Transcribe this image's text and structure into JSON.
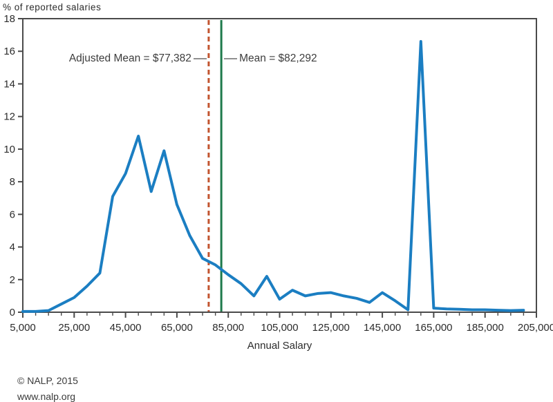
{
  "page": {
    "y_axis_title": "% of reported salaries",
    "x_axis_title": "Annual Salary",
    "footer_line1": "© NALP, 2015",
    "footer_line2": "www.nalp.org"
  },
  "annotations": {
    "adjusted_mean_label": "Adjusted Mean = $77,382",
    "mean_label": "Mean = $82,292"
  },
  "chart_data": {
    "type": "line",
    "title": "",
    "xlabel": "Annual Salary",
    "ylabel": "% of reported salaries",
    "xlim": [
      5000,
      205000
    ],
    "ylim": [
      0,
      18
    ],
    "x_major_tick_step": 20000,
    "x_minor_tick_step": 5000,
    "y_tick_step": 2,
    "grid": false,
    "legend": "none",
    "axis_color": "#4a4a4a",
    "x_tick_labels": [
      "5,000",
      "25,000",
      "45,000",
      "65,000",
      "85,000",
      "105,000",
      "125,000",
      "145,000",
      "165,000",
      "185,000",
      "205,000"
    ],
    "series": [
      {
        "name": "% of reported salaries",
        "color": "#1b7ec2",
        "x": [
          5000,
          10000,
          15000,
          20000,
          25000,
          30000,
          35000,
          40000,
          45000,
          50000,
          55000,
          60000,
          65000,
          70000,
          75000,
          80000,
          85000,
          90000,
          95000,
          100000,
          105000,
          110000,
          115000,
          120000,
          125000,
          130000,
          135000,
          140000,
          145000,
          150000,
          155000,
          160000,
          165000,
          170000,
          175000,
          180000,
          185000,
          190000,
          195000,
          200000
        ],
        "y": [
          0.05,
          0.05,
          0.1,
          0.5,
          0.9,
          1.6,
          2.4,
          7.1,
          8.5,
          10.8,
          7.4,
          9.9,
          6.6,
          4.7,
          3.3,
          2.9,
          2.3,
          1.75,
          1.0,
          2.2,
          0.8,
          1.35,
          1.0,
          1.15,
          1.2,
          1.0,
          0.85,
          0.6,
          1.2,
          0.7,
          0.15,
          16.6,
          0.25,
          0.2,
          0.18,
          0.15,
          0.15,
          0.12,
          0.1,
          0.12
        ]
      }
    ],
    "reference_lines": [
      {
        "name": "adjusted-mean",
        "label": "Adjusted Mean = $77,382",
        "value": 77382,
        "color": "#c2542f",
        "style": "dashed"
      },
      {
        "name": "mean",
        "label": "Mean = $82,292",
        "value": 82292,
        "color": "#1e7a4c",
        "style": "solid"
      }
    ]
  }
}
